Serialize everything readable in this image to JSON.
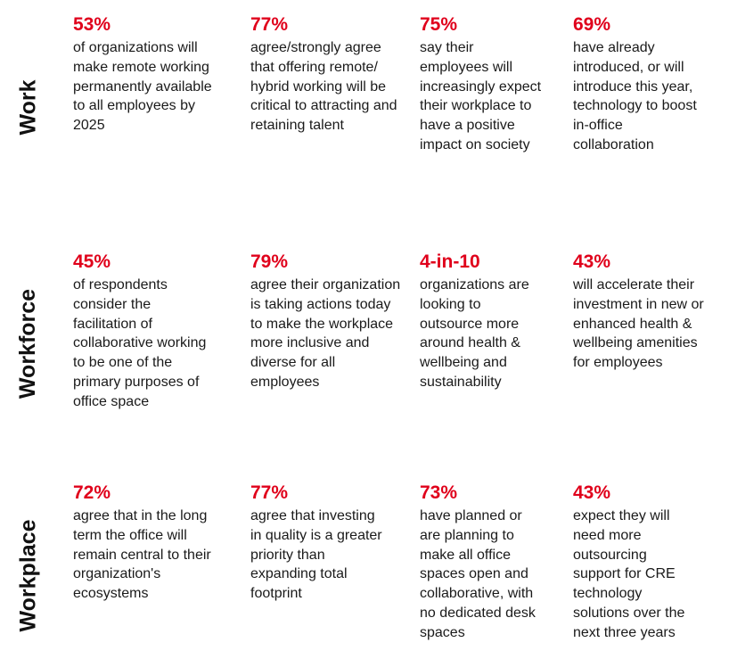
{
  "rows": [
    {
      "label": "Work",
      "stats": [
        {
          "value": "53%",
          "text": "of organizations will make remote working permanently available to all employees by 2025"
        },
        {
          "value": "77%",
          "text": "agree/strongly agree that offering remote/ hybrid working will be critical to attracting and retaining talent"
        },
        {
          "value": "75%",
          "text": "say their employees will increasingly expect their workplace to have a positive impact on society"
        },
        {
          "value": "69%",
          "text": "have already introduced, or will introduce this year, technology to boost in-office collaboration"
        }
      ]
    },
    {
      "label": "Workforce",
      "stats": [
        {
          "value": "45%",
          "text": "of respondents consider the facilitation of collaborative working to be one of the primary purposes of office space"
        },
        {
          "value": "79%",
          "text": "agree their organization is taking actions today to make the workplace more inclusive and diverse for all employees"
        },
        {
          "value": "4-in-10",
          "text": "organizations are looking to outsource more around health & wellbeing and sustainability"
        },
        {
          "value": "43%",
          "text": "will accelerate their investment in new or enhanced health & wellbeing amenities for employees"
        }
      ]
    },
    {
      "label": "Workplace",
      "stats": [
        {
          "value": "72%",
          "text": "agree that in the long term the office will remain central to their organization's ecosystems"
        },
        {
          "value": "77%",
          "text": "agree that investing in quality is a greater priority than expanding total footprint"
        },
        {
          "value": "73%",
          "text": "have planned or are planning to make all office spaces open and collaborative, with no dedicated desk spaces"
        },
        {
          "value": "43%",
          "text": "expect they will need more outsourcing support for CRE technology solutions over the next three years"
        }
      ]
    }
  ],
  "colors": {
    "accent": "#e0001b",
    "text": "#1a1a1a"
  }
}
